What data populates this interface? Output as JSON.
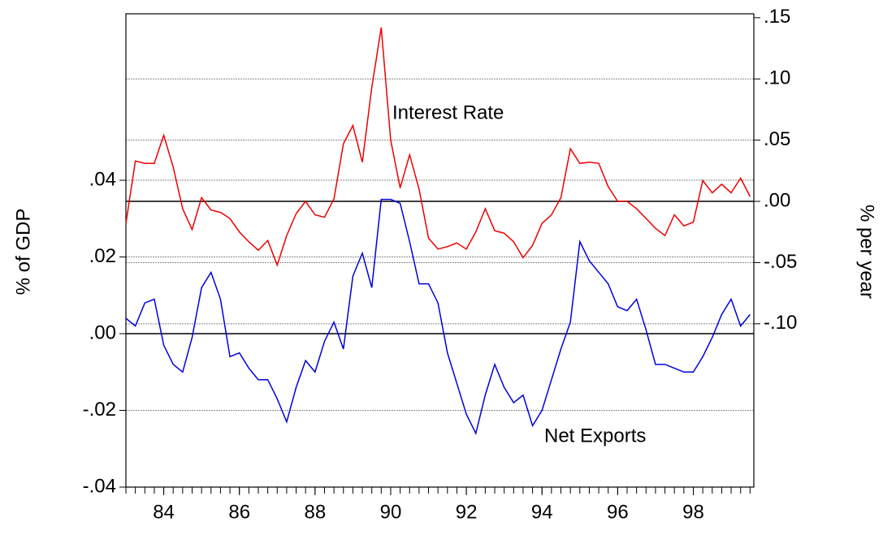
{
  "chart_data": {
    "type": "line",
    "x": [
      1983,
      1983.25,
      1983.5,
      1983.75,
      1984,
      1984.25,
      1984.5,
      1984.75,
      1985,
      1985.25,
      1985.5,
      1985.75,
      1986,
      1986.25,
      1986.5,
      1986.75,
      1987,
      1987.25,
      1987.5,
      1987.75,
      1988,
      1988.25,
      1988.5,
      1988.75,
      1989,
      1989.25,
      1989.5,
      1989.75,
      1990,
      1990.25,
      1990.5,
      1990.75,
      1991,
      1991.25,
      1991.5,
      1991.75,
      1992,
      1992.25,
      1992.5,
      1992.75,
      1993,
      1993.25,
      1993.5,
      1993.75,
      1994,
      1994.25,
      1994.5,
      1994.75,
      1995,
      1995.25,
      1995.5,
      1995.75,
      1996,
      1996.25,
      1996.5,
      1996.75,
      1997,
      1997.25,
      1997.5,
      1997.75,
      1998,
      1998.25,
      1998.5,
      1998.75,
      1999,
      1999.25,
      1999.5
    ],
    "series": [
      {
        "name": "Net Exports",
        "color": "#0000dd",
        "axis": "y",
        "values": [
          0.004,
          0.002,
          0.008,
          0.009,
          -0.003,
          -0.008,
          -0.01,
          -0.001,
          0.012,
          0.016,
          0.009,
          -0.006,
          -0.005,
          -0.009,
          -0.012,
          -0.012,
          -0.017,
          -0.023,
          -0.014,
          -0.007,
          -0.01,
          -0.002,
          0.003,
          -0.004,
          0.015,
          0.021,
          0.012,
          0.035,
          0.035,
          0.034,
          0.024,
          0.013,
          0.013,
          0.008,
          -0.005,
          -0.013,
          -0.021,
          -0.026,
          -0.016,
          -0.008,
          -0.014,
          -0.018,
          -0.016,
          -0.024,
          -0.02,
          -0.012,
          -0.004,
          0.003,
          0.024,
          0.019,
          0.016,
          0.013,
          0.007,
          0.006,
          0.009,
          0.001,
          -0.008,
          -0.008,
          -0.009,
          -0.01,
          -0.01,
          -0.006,
          -0.001,
          0.005,
          0.009,
          0.002,
          0.005
        ]
      },
      {
        "name": "Interest Rate",
        "color": "#ee0000",
        "axis": "y2",
        "values": [
          -0.018,
          0.033,
          0.031,
          0.031,
          0.054,
          0.028,
          -0.006,
          -0.023,
          0.003,
          -0.007,
          -0.009,
          -0.014,
          -0.025,
          -0.033,
          -0.04,
          -0.032,
          -0.052,
          -0.028,
          -0.01,
          0.0,
          -0.011,
          -0.013,
          0.002,
          0.047,
          0.062,
          0.032,
          0.093,
          0.142,
          0.05,
          0.011,
          0.038,
          0.01,
          -0.03,
          -0.039,
          -0.037,
          -0.034,
          -0.039,
          -0.025,
          -0.006,
          -0.024,
          -0.026,
          -0.033,
          -0.046,
          -0.036,
          -0.018,
          -0.011,
          0.003,
          0.043,
          0.031,
          0.032,
          0.031,
          0.012,
          0.0,
          0.0,
          -0.006,
          -0.014,
          -0.022,
          -0.028,
          -0.011,
          -0.02,
          -0.017,
          0.017,
          0.007,
          0.014,
          0.007,
          0.019,
          0.004
        ]
      }
    ],
    "annotations": [
      "Interest Rate",
      "Net Exports"
    ],
    "ylabel": "% of GDP",
    "y2label": "% per year",
    "xlim": [
      1983,
      1999.6
    ],
    "xticks": [
      {
        "value": 1984,
        "label": "84"
      },
      {
        "value": 1986,
        "label": "86"
      },
      {
        "value": 1988,
        "label": "88"
      },
      {
        "value": 1990,
        "label": "90"
      },
      {
        "value": 1992,
        "label": "92"
      },
      {
        "value": 1994,
        "label": "94"
      },
      {
        "value": 1996,
        "label": "96"
      },
      {
        "value": 1998,
        "label": "98"
      }
    ],
    "ylim": [
      -0.04,
      0.0834
    ],
    "yticks": [
      {
        "value": -0.04,
        "label": "-.04"
      },
      {
        "value": -0.02,
        "label": "-.02"
      },
      {
        "value": 0,
        "label": ".00"
      },
      {
        "value": 0.02,
        "label": ".02"
      },
      {
        "value": 0.04,
        "label": ".04"
      }
    ],
    "y2lim": [
      -0.2334,
      0.1532
    ],
    "y2ticks": [
      {
        "value": -0.1,
        "label": "-.10"
      },
      {
        "value": -0.05,
        "label": "-.05"
      },
      {
        "value": 0,
        "label": ".00"
      },
      {
        "value": 0.05,
        "label": ".05"
      },
      {
        "value": 0.1,
        "label": ".10"
      },
      {
        "value": 0.15,
        "label": ".15"
      }
    ],
    "grid": true
  }
}
